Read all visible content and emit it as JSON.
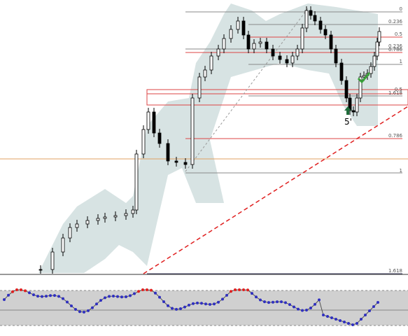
{
  "fib_labels": [
    {
      "label": "0"
    },
    {
      "label": "0.236"
    },
    {
      "label": "0.5"
    },
    {
      "label": "0.236"
    },
    {
      "label": "0.786"
    },
    {
      "label": "1"
    },
    {
      "label": "0.5"
    },
    {
      "label": "1.618"
    },
    {
      "label": "0.786"
    },
    {
      "label": "1"
    },
    {
      "label": "1.618"
    }
  ],
  "wave_label": "5'"
}
